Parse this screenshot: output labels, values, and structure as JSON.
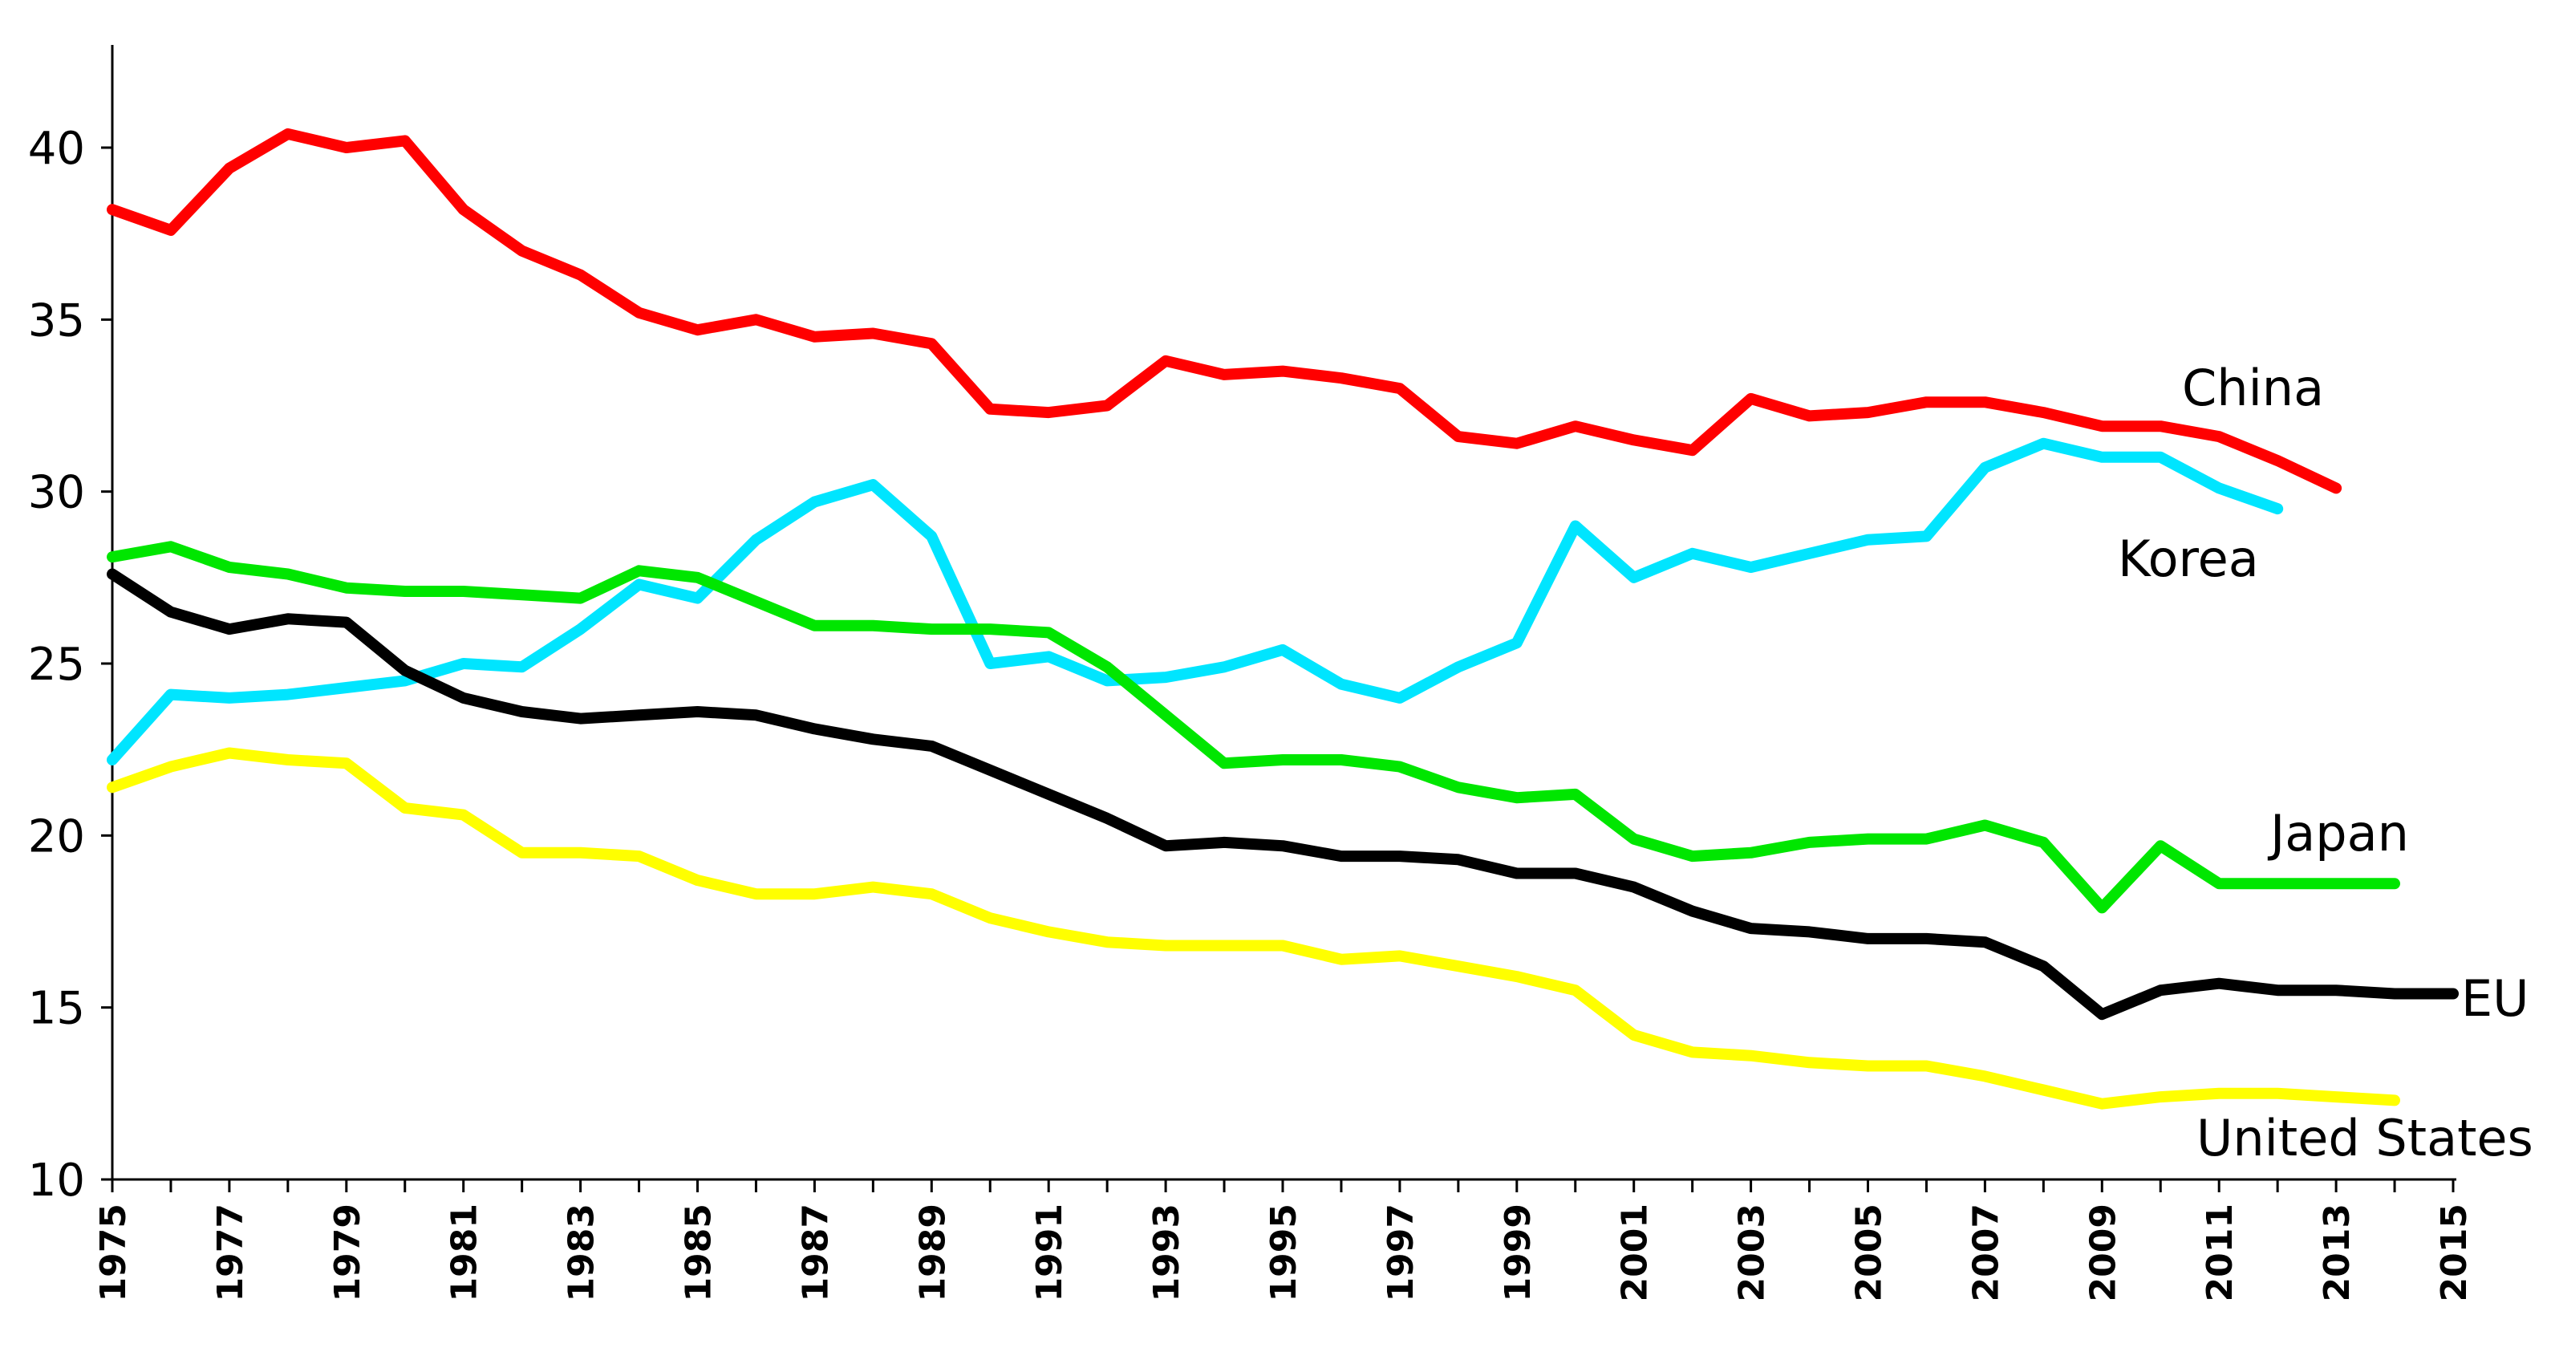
{
  "chart_data": {
    "type": "line",
    "title": "",
    "xlabel": "",
    "ylabel": "",
    "xlim": [
      1975,
      2015
    ],
    "ylim": [
      10,
      43
    ],
    "grid": false,
    "y_ticks": [
      10,
      15,
      20,
      25,
      30,
      35,
      40
    ],
    "x_tick_labels": [
      "1975",
      "1977",
      "1979",
      "1981",
      "1983",
      "1985",
      "1987",
      "1989",
      "1991",
      "1993",
      "1995",
      "1997",
      "1999",
      "2001",
      "2003",
      "2005",
      "2007",
      "2009",
      "2011",
      "2013",
      "2015"
    ],
    "series": [
      {
        "name": "China",
        "color": "#ff0000",
        "x": [
          1975,
          1976,
          1977,
          1978,
          1979,
          1980,
          1981,
          1982,
          1983,
          1984,
          1985,
          1986,
          1987,
          1988,
          1989,
          1990,
          1991,
          1992,
          1993,
          1994,
          1995,
          1996,
          1997,
          1998,
          1999,
          2000,
          2001,
          2002,
          2003,
          2004,
          2005,
          2006,
          2007,
          2008,
          2009,
          2010,
          2011,
          2012,
          2013
        ],
        "values": [
          38.2,
          37.6,
          39.4,
          40.4,
          40.0,
          40.2,
          38.2,
          37.0,
          36.3,
          35.2,
          34.7,
          35.0,
          34.5,
          34.6,
          34.3,
          32.4,
          32.3,
          32.5,
          33.8,
          33.4,
          33.5,
          33.3,
          33.0,
          31.6,
          31.4,
          31.9,
          31.5,
          31.2,
          32.7,
          32.2,
          32.3,
          32.6,
          32.6,
          32.3,
          31.9,
          31.9,
          31.6,
          30.9,
          30.1
        ]
      },
      {
        "name": "Korea",
        "color": "#00e5ff",
        "x": [
          1975,
          1976,
          1977,
          1978,
          1979,
          1980,
          1981,
          1982,
          1983,
          1984,
          1985,
          1986,
          1987,
          1988,
          1989,
          1990,
          1991,
          1992,
          1993,
          1994,
          1995,
          1996,
          1997,
          1998,
          1999,
          2000,
          2001,
          2002,
          2003,
          2004,
          2005,
          2006,
          2007,
          2008,
          2009,
          2010,
          2011,
          2012
        ],
        "values": [
          22.2,
          24.1,
          24.0,
          24.1,
          24.3,
          24.5,
          25.0,
          24.9,
          26.0,
          27.3,
          26.9,
          28.6,
          29.7,
          30.2,
          28.7,
          25.0,
          25.2,
          24.5,
          24.6,
          24.9,
          25.4,
          24.4,
          24.0,
          24.9,
          25.6,
          29.0,
          27.5,
          28.2,
          27.8,
          28.2,
          28.6,
          28.7,
          30.7,
          31.4,
          31.0,
          31.0,
          30.1,
          29.5
        ]
      },
      {
        "name": "Japan",
        "color": "#00e600",
        "x": [
          1975,
          1976,
          1977,
          1978,
          1979,
          1980,
          1981,
          1982,
          1983,
          1984,
          1985,
          1986,
          1987,
          1988,
          1989,
          1990,
          1991,
          1992,
          1993,
          1994,
          1995,
          1996,
          1997,
          1998,
          1999,
          2000,
          2001,
          2002,
          2003,
          2004,
          2005,
          2006,
          2007,
          2008,
          2009,
          2010,
          2011,
          2012,
          2013,
          2014
        ],
        "values": [
          28.1,
          28.4,
          27.8,
          27.6,
          27.2,
          27.1,
          27.1,
          27.0,
          26.9,
          27.7,
          27.5,
          26.8,
          26.1,
          26.1,
          26.0,
          26.0,
          25.9,
          24.9,
          23.5,
          22.1,
          22.2,
          22.2,
          22.0,
          21.4,
          21.1,
          21.2,
          19.9,
          19.4,
          19.5,
          19.8,
          19.9,
          19.9,
          20.3,
          19.8,
          17.9,
          19.7,
          18.6,
          18.6,
          18.6,
          18.6
        ]
      },
      {
        "name": "EU",
        "color": "#000000",
        "x": [
          1975,
          1976,
          1977,
          1978,
          1979,
          1980,
          1981,
          1982,
          1983,
          1984,
          1985,
          1986,
          1987,
          1988,
          1989,
          1990,
          1991,
          1992,
          1993,
          1994,
          1995,
          1996,
          1997,
          1998,
          1999,
          2000,
          2001,
          2002,
          2003,
          2004,
          2005,
          2006,
          2007,
          2008,
          2009,
          2010,
          2011,
          2012,
          2013,
          2014,
          2015
        ],
        "values": [
          27.6,
          26.5,
          26.0,
          26.3,
          26.2,
          24.8,
          24.0,
          23.6,
          23.4,
          23.5,
          23.6,
          23.5,
          23.1,
          22.8,
          22.6,
          21.9,
          21.2,
          20.5,
          19.7,
          19.8,
          19.7,
          19.4,
          19.4,
          19.3,
          18.9,
          18.9,
          18.5,
          17.8,
          17.3,
          17.2,
          17.0,
          17.0,
          16.9,
          16.2,
          14.8,
          15.5,
          15.7,
          15.5,
          15.5,
          15.4,
          15.4
        ]
      },
      {
        "name": "United States",
        "color": "#ffff00",
        "x": [
          1975,
          1976,
          1977,
          1978,
          1979,
          1980,
          1981,
          1982,
          1983,
          1984,
          1985,
          1986,
          1987,
          1988,
          1989,
          1990,
          1991,
          1992,
          1993,
          1994,
          1995,
          1996,
          1997,
          1998,
          1999,
          2000,
          2001,
          2002,
          2003,
          2004,
          2005,
          2006,
          2007,
          2008,
          2009,
          2010,
          2011,
          2012,
          2013,
          2014
        ],
        "values": [
          21.4,
          22.0,
          22.4,
          22.2,
          22.1,
          20.8,
          20.6,
          19.5,
          19.5,
          19.4,
          18.7,
          18.3,
          18.3,
          18.5,
          18.3,
          17.6,
          17.2,
          16.9,
          16.8,
          16.8,
          16.8,
          16.4,
          16.5,
          16.2,
          15.9,
          15.5,
          14.2,
          13.7,
          13.6,
          13.4,
          13.3,
          13.3,
          13.0,
          12.6,
          12.2,
          12.4,
          12.5,
          12.5,
          12.4,
          12.3
        ]
      }
    ]
  }
}
